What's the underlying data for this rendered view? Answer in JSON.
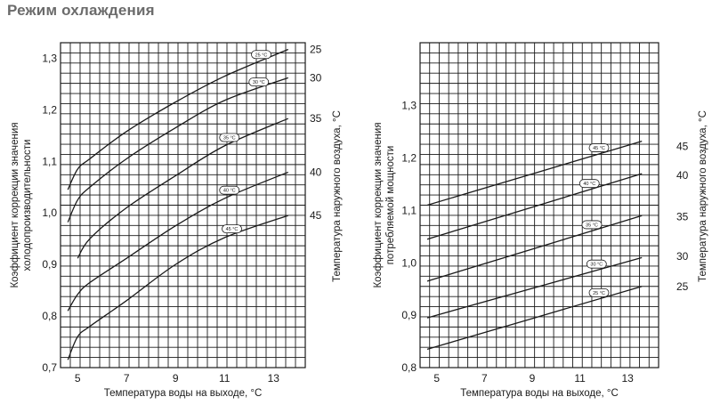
{
  "page": {
    "title": "Режим охлаждения"
  },
  "chart_data": [
    {
      "type": "line",
      "title": "",
      "xlabel": "Температура воды на выходе, °C",
      "ylabel": "Коэффициент коррекции значения холодопроизводительности",
      "ylabel_lines": [
        "Коэффициент коррекции значения",
        "холодопроизводительности"
      ],
      "y2label": "Температура наружного воздуха, °C",
      "xlim": [
        4.3,
        14.3
      ],
      "ylim": [
        0.7,
        1.33
      ],
      "grid": true,
      "x_ticks": [
        5,
        7,
        9,
        11,
        13
      ],
      "x_tick_labels": [
        "5",
        "7",
        "9",
        "11",
        "13"
      ],
      "y_ticks": [
        0.7,
        0.8,
        0.9,
        1.0,
        1.1,
        1.2,
        1.3
      ],
      "y_tick_labels": [
        "0,7",
        "0,8",
        "0,9",
        "1,0",
        "1,1",
        "1,2",
        "1,3"
      ],
      "right_labels": [
        {
          "text": "25",
          "y": 1.317
        },
        {
          "text": "30",
          "y": 1.262
        },
        {
          "text": "35",
          "y": 1.183
        },
        {
          "text": "40",
          "y": 1.079
        },
        {
          "text": "45",
          "y": 0.995
        }
      ],
      "series": [
        {
          "name": "25 °C",
          "label_x": 12.5,
          "x": [
            4.6,
            5.0,
            5.5,
            7.0,
            9.0,
            11.0,
            13.6
          ],
          "values": [
            1.045,
            1.085,
            1.105,
            1.158,
            1.215,
            1.265,
            1.317
          ]
        },
        {
          "name": "30 °C",
          "label_x": 12.4,
          "x": [
            4.6,
            5.0,
            5.5,
            7.0,
            9.0,
            11.0,
            13.6
          ],
          "values": [
            0.982,
            1.025,
            1.05,
            1.105,
            1.165,
            1.218,
            1.262
          ]
        },
        {
          "name": "35 °C",
          "label_x": 11.2,
          "x": [
            5.0,
            5.5,
            7.0,
            9.0,
            11.0,
            13.6
          ],
          "values": [
            0.912,
            0.95,
            1.01,
            1.072,
            1.13,
            1.183
          ]
        },
        {
          "name": "40 °C",
          "label_x": 11.2,
          "x": [
            4.6,
            5.0,
            5.5,
            7.0,
            9.0,
            11.0,
            13.6
          ],
          "values": [
            0.81,
            0.842,
            0.865,
            0.912,
            0.975,
            1.028,
            1.079
          ]
        },
        {
          "name": "45 °C",
          "label_x": 11.3,
          "x": [
            4.6,
            5.0,
            5.5,
            7.0,
            9.0,
            11.0,
            13.6
          ],
          "values": [
            0.715,
            0.76,
            0.78,
            0.83,
            0.9,
            0.952,
            0.995
          ]
        }
      ]
    },
    {
      "type": "line",
      "title": "",
      "xlabel": "Температура воды на выходе, °C",
      "ylabel": "Коэффициент коррекции значения потребляемой мощности",
      "ylabel_lines": [
        "Коэффициент коррекции значения",
        "потребляемой мощности"
      ],
      "y2label": "Температура наружного воздуха, °C",
      "xlim": [
        4.3,
        14.3
      ],
      "ylim": [
        0.8,
        1.42
      ],
      "grid": true,
      "x_ticks": [
        5,
        7,
        9,
        11,
        13
      ],
      "x_tick_labels": [
        "5",
        "7",
        "9",
        "11",
        "13"
      ],
      "y_ticks": [
        0.8,
        0.9,
        1.0,
        1.1,
        1.2,
        1.3
      ],
      "y_tick_labels": [
        "0,8",
        "0,9",
        "1,0",
        "1,1",
        "1,2",
        "1,3"
      ],
      "right_labels": [
        {
          "text": "45",
          "y": 1.222
        },
        {
          "text": "40",
          "y": 1.167
        },
        {
          "text": "35",
          "y": 1.088
        },
        {
          "text": "30",
          "y": 1.012
        },
        {
          "text": "25",
          "y": 0.955
        }
      ],
      "series": [
        {
          "name": "45 °C",
          "label_x": 11.8,
          "x": [
            4.6,
            13.6
          ],
          "values": [
            1.11,
            1.232
          ]
        },
        {
          "name": "40 °C",
          "label_x": 11.4,
          "x": [
            4.6,
            13.6
          ],
          "values": [
            1.045,
            1.17
          ]
        },
        {
          "name": "35 °C",
          "label_x": 11.5,
          "x": [
            4.6,
            13.6
          ],
          "values": [
            0.965,
            1.09
          ]
        },
        {
          "name": "30 °C",
          "label_x": 11.7,
          "x": [
            4.6,
            13.6
          ],
          "values": [
            0.895,
            1.01
          ]
        },
        {
          "name": "25 °C",
          "label_x": 11.8,
          "x": [
            4.6,
            13.6
          ],
          "values": [
            0.835,
            0.955
          ]
        }
      ]
    }
  ]
}
